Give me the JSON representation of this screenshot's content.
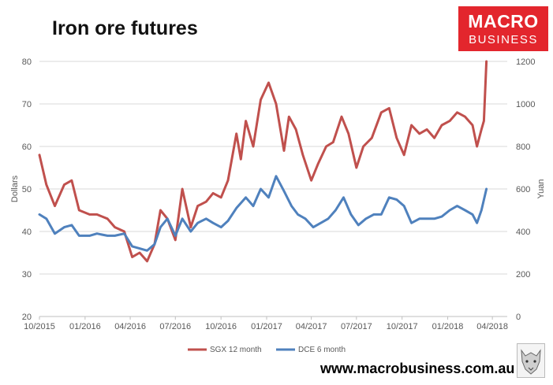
{
  "page": {
    "title": "Iron ore futures",
    "website": "www.macrobusiness.com.au"
  },
  "logo": {
    "line1": "MACRO",
    "line2": "BUSINESS"
  },
  "colors": {
    "sgx": "#c0504d",
    "dce": "#4f81bd",
    "logo_bg": "#e3262d"
  },
  "chart_data": {
    "type": "line",
    "title": "Iron ore futures",
    "ylabel": "Dollars",
    "y2label": "Yuan",
    "ylim": [
      20,
      80
    ],
    "y2lim": [
      0,
      1200
    ],
    "yticks": [
      20,
      30,
      40,
      50,
      60,
      70,
      80
    ],
    "y2ticks": [
      0,
      200,
      400,
      600,
      800,
      1000,
      1200
    ],
    "xlim": [
      "2015-10",
      "2018-05"
    ],
    "xticks": [
      "10/2015",
      "01/2016",
      "04/2016",
      "07/2016",
      "10/2016",
      "01/2017",
      "04/2017",
      "07/2017",
      "10/2017",
      "01/2018",
      "04/2018"
    ],
    "grid": "horizontal",
    "legend_position": "bottom",
    "series": [
      {
        "name": "SGX 12 month",
        "axis": "left",
        "color": "#c0504d",
        "x": [
          "2015-10-01",
          "2015-10-15",
          "2015-11-01",
          "2015-11-20",
          "2015-12-05",
          "2015-12-20",
          "2016-01-10",
          "2016-01-25",
          "2016-02-15",
          "2016-03-01",
          "2016-03-20",
          "2016-04-05",
          "2016-04-20",
          "2016-05-05",
          "2016-05-20",
          "2016-06-01",
          "2016-06-15",
          "2016-07-01",
          "2016-07-15",
          "2016-08-01",
          "2016-08-15",
          "2016-09-01",
          "2016-09-15",
          "2016-10-01",
          "2016-10-15",
          "2016-11-01",
          "2016-11-10",
          "2016-11-20",
          "2016-12-05",
          "2016-12-20",
          "2017-01-05",
          "2017-01-20",
          "2017-02-05",
          "2017-02-15",
          "2017-03-01",
          "2017-03-15",
          "2017-04-01",
          "2017-04-15",
          "2017-05-01",
          "2017-05-15",
          "2017-06-01",
          "2017-06-15",
          "2017-07-01",
          "2017-07-15",
          "2017-08-01",
          "2017-08-20",
          "2017-09-05",
          "2017-09-20",
          "2017-10-05",
          "2017-10-20",
          "2017-11-05",
          "2017-11-20",
          "2017-12-05",
          "2017-12-20",
          "2018-01-05",
          "2018-01-20",
          "2018-02-05",
          "2018-02-20",
          "2018-03-01",
          "2018-03-10",
          "2018-03-15",
          "2018-03-20"
        ],
        "values": [
          58,
          51,
          46,
          51,
          52,
          45,
          44,
          44,
          43,
          41,
          40,
          34,
          35,
          33,
          37,
          45,
          43,
          38,
          50,
          41,
          46,
          47,
          49,
          48,
          52,
          63,
          57,
          66,
          60,
          71,
          75,
          70,
          59,
          67,
          64,
          58,
          52,
          56,
          60,
          61,
          67,
          63,
          55,
          60,
          62,
          68,
          69,
          62,
          58,
          65,
          63,
          64,
          62,
          65,
          66,
          68,
          67,
          65,
          60,
          64,
          66,
          80
        ]
      },
      {
        "name": "DCE 6 month",
        "axis": "right",
        "color": "#4f81bd",
        "x": [
          "2015-10-01",
          "2015-10-15",
          "2015-11-01",
          "2015-11-20",
          "2015-12-05",
          "2015-12-20",
          "2016-01-10",
          "2016-01-25",
          "2016-02-15",
          "2016-03-01",
          "2016-03-20",
          "2016-04-05",
          "2016-04-20",
          "2016-05-05",
          "2016-05-20",
          "2016-06-01",
          "2016-06-15",
          "2016-07-01",
          "2016-07-15",
          "2016-08-01",
          "2016-08-15",
          "2016-09-01",
          "2016-09-15",
          "2016-10-01",
          "2016-10-15",
          "2016-11-01",
          "2016-11-20",
          "2016-12-05",
          "2016-12-20",
          "2017-01-05",
          "2017-01-20",
          "2017-02-05",
          "2017-02-20",
          "2017-03-05",
          "2017-03-20",
          "2017-04-05",
          "2017-04-20",
          "2017-05-05",
          "2017-05-20",
          "2017-06-05",
          "2017-06-20",
          "2017-07-05",
          "2017-07-20",
          "2017-08-05",
          "2017-08-20",
          "2017-09-05",
          "2017-09-20",
          "2017-10-05",
          "2017-10-20",
          "2017-11-05",
          "2017-11-20",
          "2017-12-05",
          "2017-12-20",
          "2018-01-05",
          "2018-01-20",
          "2018-02-05",
          "2018-02-20",
          "2018-03-01",
          "2018-03-10",
          "2018-03-20"
        ],
        "values": [
          480,
          460,
          390,
          420,
          430,
          380,
          380,
          390,
          380,
          380,
          390,
          330,
          320,
          310,
          340,
          420,
          460,
          380,
          460,
          400,
          440,
          460,
          440,
          420,
          450,
          510,
          560,
          520,
          600,
          560,
          660,
          590,
          520,
          480,
          460,
          420,
          440,
          460,
          500,
          560,
          480,
          430,
          460,
          480,
          480,
          560,
          550,
          520,
          440,
          460,
          460,
          460,
          470,
          500,
          520,
          500,
          480,
          440,
          500,
          600
        ]
      }
    ]
  }
}
